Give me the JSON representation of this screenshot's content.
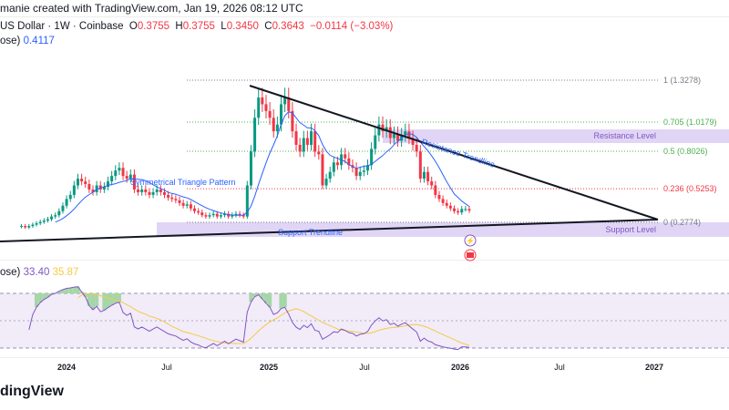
{
  "header": {
    "credit": "manie created with TradingView.com, Jan 19, 2026 08:12 UTC",
    "symbol": "US Dollar · 1W · Coinbase",
    "open_label": "O",
    "open": "0.3755",
    "high_label": "H",
    "high": "0.3755",
    "low_label": "L",
    "low": "0.3450",
    "close_label": "C",
    "close": "0.3643",
    "change": "−0.0114 (−3.03%)",
    "ma_label": "ose)",
    "ma_value": "0.4117"
  },
  "rsi_legend": {
    "label": "ose)",
    "rsi": "33.40",
    "rsi_ma": "35.87"
  },
  "logo": "dingView",
  "colors": {
    "up": "#089981",
    "down": "#f23645",
    "ma": "#2962ff",
    "rsi": "#7e57c2",
    "rsi_ma": "#f7c948",
    "zone": "#e1d5f5"
  },
  "chart_data": {
    "type": "candlestick",
    "interval": "1W",
    "x_ticks": [
      "2024",
      "Jul",
      "2025",
      "Jul",
      "2026",
      "Jul",
      "2027"
    ],
    "closes": [
      0.25,
      0.24,
      0.25,
      0.26,
      0.27,
      0.28,
      0.29,
      0.3,
      0.32,
      0.33,
      0.36,
      0.4,
      0.45,
      0.48,
      0.55,
      0.6,
      0.58,
      0.56,
      0.52,
      0.5,
      0.55,
      0.52,
      0.54,
      0.58,
      0.62,
      0.66,
      0.68,
      0.62,
      0.6,
      0.63,
      0.52,
      0.5,
      0.52,
      0.5,
      0.48,
      0.5,
      0.52,
      0.5,
      0.48,
      0.46,
      0.45,
      0.44,
      0.42,
      0.4,
      0.41,
      0.38,
      0.36,
      0.35,
      0.33,
      0.32,
      0.33,
      0.34,
      0.32,
      0.33,
      0.34,
      0.32,
      0.33,
      0.34,
      0.33,
      0.32,
      0.55,
      0.8,
      1.05,
      1.2,
      1.15,
      1.1,
      1.05,
      0.95,
      1.0,
      1.15,
      1.2,
      1.1,
      0.95,
      0.85,
      0.8,
      0.9,
      0.85,
      0.95,
      0.8,
      0.78,
      0.55,
      0.6,
      0.65,
      0.72,
      0.7,
      0.78,
      0.75,
      0.7,
      0.68,
      0.62,
      0.65,
      0.66,
      0.7,
      0.82,
      0.92,
      1.0,
      0.95,
      0.98,
      0.9,
      0.93,
      0.88,
      0.92,
      0.95,
      0.9,
      0.85,
      0.8,
      0.6,
      0.65,
      0.58,
      0.55,
      0.48,
      0.45,
      0.42,
      0.4,
      0.38,
      0.36,
      0.35,
      0.3755,
      0.3755,
      0.3643
    ],
    "fib_levels": [
      {
        "ratio": "1",
        "price": 1.3278,
        "label": "1 (1.3278)",
        "color": "#787b86"
      },
      {
        "ratio": "0.705",
        "price": 1.0179,
        "label": "0.705 (1.0179)",
        "color": "#4caf50"
      },
      {
        "ratio": "0.5",
        "price": 0.8026,
        "label": "0.5 (0.8026)",
        "color": "#4caf50"
      },
      {
        "ratio": "0.236",
        "price": 0.5253,
        "label": "0.236 (0.5253)",
        "color": "#f23645"
      },
      {
        "ratio": "0",
        "price": 0.2774,
        "label": "0 (0.2774)",
        "color": "#787b86"
      }
    ],
    "annotations": {
      "pattern": "Symmetrical Triangle Pattern",
      "resistance_trendline": "Resistance Trendline",
      "support_trendline": "Support Trendline",
      "resistance_level": "Resistance Level",
      "support_level": "Support Level"
    },
    "rsi_bands": [
      70,
      30
    ],
    "ma_period": 10,
    "rsi_period": 14
  }
}
